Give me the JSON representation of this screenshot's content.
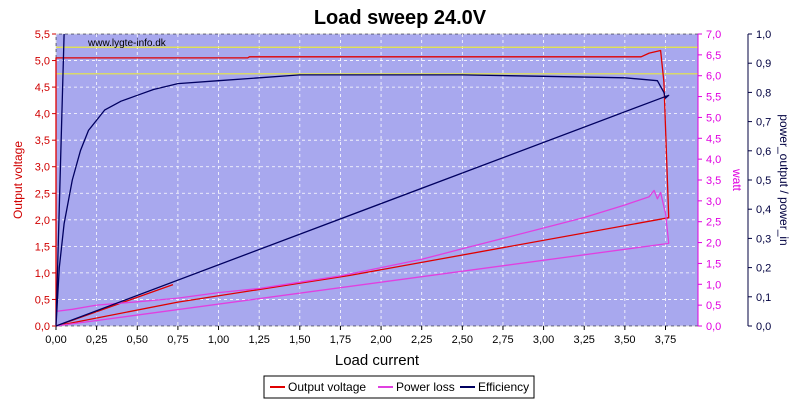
{
  "chart_data": {
    "type": "line",
    "title": "Load sweep 24.0V",
    "watermark": "www.lygte-info.dk",
    "xlabel": "Load current",
    "ylabel_left": "Output voltage",
    "ylabel_right1": "watt",
    "ylabel_right2": "power_output / power_in",
    "xlim": [
      0,
      3.95
    ],
    "ylim_left": [
      0,
      5.5
    ],
    "ylim_right1": [
      0,
      7.0
    ],
    "ylim_right2": [
      0,
      1.0
    ],
    "x_ticks": [
      "0,00",
      "0,25",
      "0,50",
      "0,75",
      "1,00",
      "1,25",
      "1,50",
      "1,75",
      "2,00",
      "2,25",
      "2,50",
      "2,75",
      "3,00",
      "3,25",
      "3,50",
      "3,75"
    ],
    "y_left_ticks": [
      "0,0",
      "0,5",
      "1,0",
      "1,5",
      "2,0",
      "2,5",
      "3,0",
      "3,5",
      "4,0",
      "4,5",
      "5,0",
      "5,5"
    ],
    "y_right1_ticks": [
      "0,0",
      "0,5",
      "1,0",
      "1,5",
      "2,0",
      "2,5",
      "3,0",
      "3,5",
      "4,0",
      "4,5",
      "5,0",
      "5,5",
      "6,0",
      "6,5",
      "7,0"
    ],
    "y_right2_ticks": [
      "0,0",
      "0,1",
      "0,2",
      "0,3",
      "0,4",
      "0,5",
      "0,6",
      "0,7",
      "0,8",
      "0,9",
      "1,0"
    ],
    "reference_lines_left": [
      5.25,
      4.75
    ],
    "colors": {
      "plot_bg": "#a8a8ee",
      "output_voltage": "#e00000",
      "power_loss": "#e040e0",
      "efficiency": "#000060",
      "reference": "#e8e840"
    },
    "legend": [
      "Output voltage",
      "Power loss",
      "Efficiency"
    ],
    "series": [
      {
        "name": "Output voltage",
        "axis": "left",
        "points": [
          [
            0.0,
            0.02
          ],
          [
            0.0,
            5.05
          ],
          [
            1.0,
            5.05
          ],
          [
            1.18,
            5.05
          ],
          [
            1.19,
            5.07
          ],
          [
            3.6,
            5.07
          ],
          [
            3.65,
            5.14
          ],
          [
            3.72,
            5.19
          ],
          [
            3.74,
            4.6
          ],
          [
            3.77,
            2.05
          ],
          [
            3.77,
            2.04
          ],
          [
            1.8,
            0.95
          ],
          [
            0.75,
            0.45
          ],
          [
            0.0,
            0.0
          ],
          [
            0.02,
            0.02
          ],
          [
            0.72,
            0.78
          ]
        ]
      },
      {
        "name": "Power loss",
        "axis": "right1",
        "points": [
          [
            0.0,
            0.35
          ],
          [
            0.1,
            0.4
          ],
          [
            0.25,
            0.5
          ],
          [
            0.5,
            0.58
          ],
          [
            0.75,
            0.67
          ],
          [
            1.0,
            0.8
          ],
          [
            1.25,
            0.9
          ],
          [
            1.5,
            1.05
          ],
          [
            1.75,
            1.2
          ],
          [
            2.0,
            1.4
          ],
          [
            2.25,
            1.6
          ],
          [
            2.5,
            1.85
          ],
          [
            2.75,
            2.1
          ],
          [
            3.0,
            2.35
          ],
          [
            3.25,
            2.6
          ],
          [
            3.5,
            2.9
          ],
          [
            3.65,
            3.1
          ],
          [
            3.68,
            3.25
          ],
          [
            3.7,
            3.05
          ],
          [
            3.72,
            3.2
          ],
          [
            3.75,
            2.7
          ],
          [
            3.77,
            2.0
          ],
          [
            3.77,
            1.98
          ],
          [
            0.0,
            0.0
          ]
        ]
      },
      {
        "name": "Efficiency",
        "axis": "right2",
        "points": [
          [
            0.0,
            0.0
          ],
          [
            0.02,
            0.2
          ],
          [
            0.05,
            0.35
          ],
          [
            0.1,
            0.5
          ],
          [
            0.15,
            0.6
          ],
          [
            0.2,
            0.67
          ],
          [
            0.3,
            0.74
          ],
          [
            0.4,
            0.77
          ],
          [
            0.5,
            0.79
          ],
          [
            0.6,
            0.81
          ],
          [
            0.75,
            0.83
          ],
          [
            1.0,
            0.84
          ],
          [
            1.25,
            0.85
          ],
          [
            1.5,
            0.86
          ],
          [
            2.0,
            0.86
          ],
          [
            2.5,
            0.86
          ],
          [
            3.0,
            0.855
          ],
          [
            3.5,
            0.85
          ],
          [
            3.7,
            0.84
          ],
          [
            3.74,
            0.8
          ],
          [
            3.75,
            0.78
          ],
          [
            3.77,
            0.79
          ],
          [
            0.0,
            0.0
          ],
          [
            0.05,
            1.0
          ]
        ]
      }
    ]
  }
}
